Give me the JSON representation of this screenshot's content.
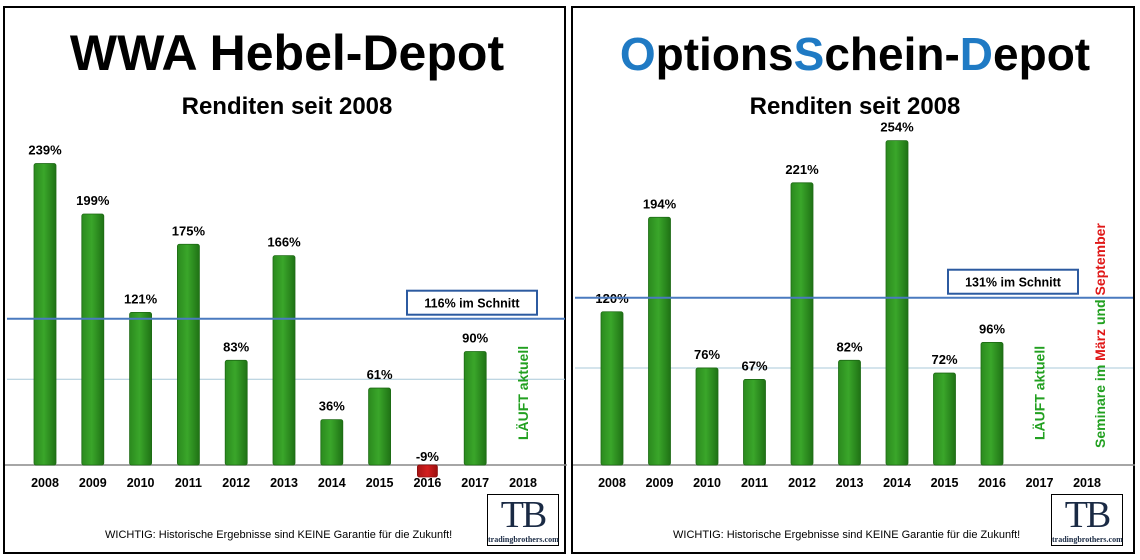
{
  "chart_data": [
    {
      "type": "bar",
      "title": "WWA Hebel-Depot",
      "subtitle": "Renditen seit 2008",
      "categories": [
        "2008",
        "2009",
        "2010",
        "2011",
        "2012",
        "2013",
        "2014",
        "2015",
        "2016",
        "2017",
        "2018"
      ],
      "values": [
        239,
        199,
        121,
        175,
        83,
        166,
        36,
        61,
        -9,
        90,
        null
      ],
      "value_labels": [
        "239%",
        "199%",
        "121%",
        "175%",
        "83%",
        "166%",
        "36%",
        "61%",
        "-9%",
        "90%",
        ""
      ],
      "average": {
        "value": 116,
        "label": "116% im Schnitt"
      },
      "reference_line": 68,
      "side_note": {
        "category": "2018",
        "text": "LÄUFT aktuell"
      },
      "ylim": [
        -12,
        245
      ],
      "colors": {
        "positive": "#3aa62a",
        "negative": "#d41f1f",
        "average_line": "#4a7abf"
      },
      "disclaimer": "WICHTIG: Historische Ergebnisse sind KEINE Garantie für die Zukunft!",
      "logo": {
        "mark": "TB",
        "text": "tradingbrothers.com"
      }
    },
    {
      "type": "bar",
      "title_parts": [
        {
          "text": "O",
          "color": "#1f7ac4"
        },
        {
          "text": "ptions",
          "color": "#000000"
        },
        {
          "text": "S",
          "color": "#1f7ac4"
        },
        {
          "text": "chein-",
          "color": "#000000"
        },
        {
          "text": "D",
          "color": "#1f7ac4"
        },
        {
          "text": "epot",
          "color": "#000000"
        }
      ],
      "subtitle": "Renditen seit 2008",
      "categories": [
        "2008",
        "2009",
        "2010",
        "2011",
        "2012",
        "2013",
        "2014",
        "2015",
        "2016",
        "2017",
        "2018"
      ],
      "values": [
        120,
        194,
        76,
        67,
        221,
        82,
        254,
        72,
        96,
        null,
        null
      ],
      "value_labels": [
        "120%",
        "194%",
        "76%",
        "67%",
        "221%",
        "82%",
        "254%",
        "72%",
        "96%",
        "",
        ""
      ],
      "average": {
        "value": 131,
        "label": "131% im Schnitt"
      },
      "reference_line": 76,
      "side_note": {
        "category": "2017",
        "text": "LÄUFT aktuell"
      },
      "seminar_note": [
        {
          "text": "Seminare im ",
          "color": "#22a020"
        },
        {
          "text": "März",
          "color": "#e01818"
        },
        {
          "text": " und ",
          "color": "#22a020"
        },
        {
          "text": "September",
          "color": "#e01818"
        }
      ],
      "ylim": [
        0,
        260
      ],
      "colors": {
        "positive": "#3aa62a",
        "negative": "#d41f1f",
        "average_line": "#4a7abf"
      },
      "disclaimer": "WICHTIG: Historische Ergebnisse sind KEINE Garantie für die Zukunft!",
      "logo": {
        "mark": "TB",
        "text": "tradingbrothers.com"
      }
    }
  ]
}
